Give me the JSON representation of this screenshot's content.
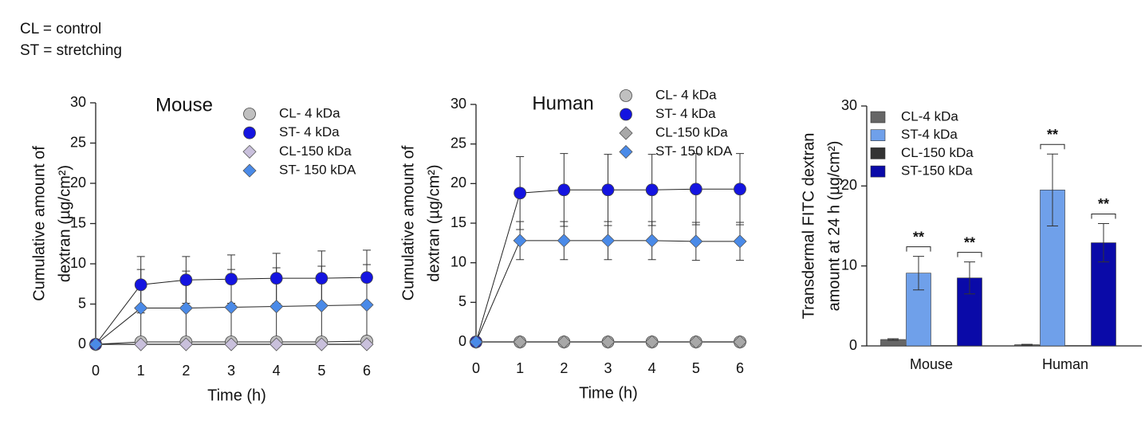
{
  "header": {
    "lines": [
      "CL = control",
      "ST = stretching"
    ]
  },
  "chart_data": [
    {
      "type": "line",
      "title": "Mouse",
      "x_label": "Time (h)",
      "y_label": [
        "Cumulative amount of",
        "dextran (µg/cm²)"
      ],
      "x": [
        0,
        1,
        2,
        3,
        4,
        5,
        6
      ],
      "xlim": [
        0,
        6
      ],
      "xticks": [
        0,
        1,
        2,
        3,
        4,
        5,
        6
      ],
      "ylim": [
        0,
        30
      ],
      "yticks": [
        0,
        5,
        10,
        15,
        20,
        25,
        30
      ],
      "series": [
        {
          "name": "CL- 4 kDa",
          "color": "#c0c0c0",
          "marker": "circle",
          "values": [
            0,
            0.3,
            0.3,
            0.3,
            0.3,
            0.3,
            0.4
          ],
          "errors": [
            0,
            0.2,
            0.2,
            0.2,
            0.2,
            0.2,
            0.2
          ]
        },
        {
          "name": "ST- 4 kDa",
          "color": "#1414e0",
          "marker": "circle",
          "values": [
            0,
            7.4,
            8.0,
            8.1,
            8.2,
            8.2,
            8.3
          ],
          "errors": [
            0,
            3.5,
            2.9,
            3.0,
            3.1,
            3.4,
            3.4
          ]
        },
        {
          "name": "CL-150 kDa",
          "color": "#c9c0dc",
          "marker": "diamond",
          "values": [
            0,
            0,
            0,
            0,
            0,
            0,
            0
          ],
          "errors": [
            0,
            0,
            0,
            0,
            0,
            0,
            0
          ]
        },
        {
          "name": "ST- 150 kDA",
          "color": "#4a8ae8",
          "marker": "diamond",
          "values": [
            0,
            4.5,
            4.5,
            4.6,
            4.7,
            4.8,
            4.9
          ],
          "errors": [
            0,
            4.8,
            4.6,
            4.7,
            4.8,
            4.9,
            5.0
          ]
        }
      ]
    },
    {
      "type": "line",
      "title": "Human",
      "x_label": "Time (h)",
      "y_label": [
        "Cumulative amount of",
        "dextran (µg/cm²)"
      ],
      "x": [
        0,
        1,
        2,
        3,
        4,
        5,
        6
      ],
      "xlim": [
        0,
        6
      ],
      "xticks": [
        0,
        1,
        2,
        3,
        4,
        5,
        6
      ],
      "ylim": [
        0,
        30
      ],
      "yticks": [
        0,
        5,
        10,
        15,
        20,
        25,
        30
      ],
      "series": [
        {
          "name": "CL- 4 kDa",
          "color": "#c0c0c0",
          "marker": "circle",
          "values": [
            0,
            0,
            0,
            0,
            0,
            0,
            0
          ],
          "errors": [
            0,
            0,
            0,
            0,
            0,
            0,
            0
          ]
        },
        {
          "name": "ST- 4 kDa",
          "color": "#1414e0",
          "marker": "circle",
          "values": [
            0,
            18.8,
            19.2,
            19.2,
            19.2,
            19.3,
            19.3
          ],
          "errors": [
            0,
            4.6,
            4.6,
            4.5,
            4.5,
            4.5,
            4.5
          ]
        },
        {
          "name": "CL-150 kDa",
          "color": "#a8a8a8",
          "marker": "diamond",
          "values": [
            0,
            0,
            0,
            0,
            0,
            0,
            0
          ],
          "errors": [
            0,
            0,
            0,
            0,
            0,
            0,
            0
          ]
        },
        {
          "name": "ST- 150 kDA",
          "color": "#4a8ae8",
          "marker": "diamond",
          "values": [
            0,
            12.8,
            12.8,
            12.8,
            12.8,
            12.7,
            12.7
          ],
          "errors": [
            0,
            2.4,
            2.4,
            2.4,
            2.4,
            2.4,
            2.4
          ]
        }
      ]
    },
    {
      "type": "bar",
      "y_label": [
        "Transdermal FITC dextran",
        "amount at 24 h (µg/cm²)"
      ],
      "categories": [
        "Mouse",
        "Human"
      ],
      "ylim": [
        0,
        30
      ],
      "yticks": [
        0,
        10,
        20,
        30
      ],
      "series": [
        {
          "name": "CL-4 kDa",
          "color": "#666666",
          "values": [
            0.8,
            0.15
          ],
          "errors": [
            0.1,
            0.05
          ]
        },
        {
          "name": "ST-4 kDa",
          "color": "#6fa0ea",
          "values": [
            9.1,
            19.5
          ],
          "errors": [
            2.1,
            4.5
          ]
        },
        {
          "name": "CL-150 kDa",
          "color": "#333333",
          "values": [
            0.05,
            0.05
          ],
          "errors": [
            0,
            0
          ]
        },
        {
          "name": "ST-150 kDa",
          "color": "#0a0aa8",
          "values": [
            8.5,
            12.9
          ],
          "errors": [
            2.0,
            2.4
          ]
        }
      ],
      "annotations": [
        "**",
        "**",
        "**",
        "**"
      ]
    }
  ]
}
